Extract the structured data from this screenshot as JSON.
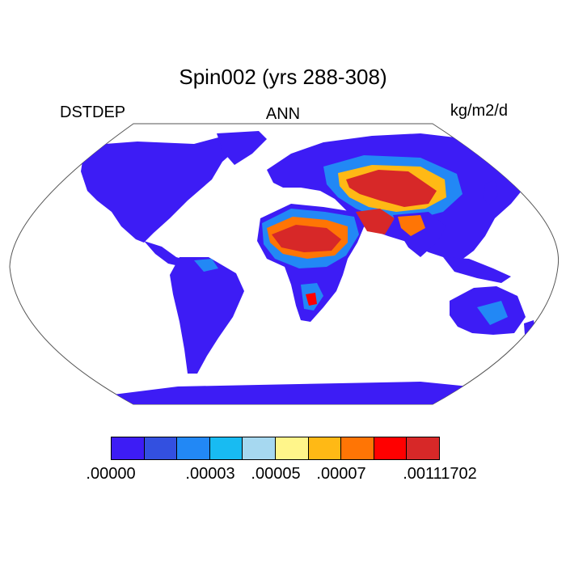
{
  "title": "Spin002 (yrs 288-308)",
  "left_label": "DSTDEP",
  "center_label": "ANN",
  "right_label": "kg/m2/d",
  "colors": {
    "ocean": "#ffffff",
    "outline": "#000000"
  },
  "colorbar": {
    "swatches": [
      "#3d1cf5",
      "#3350e0",
      "#2288f5",
      "#18bbf2",
      "#a6d8f0",
      "#fff58a",
      "#ffb915",
      "#ff7505",
      "#ff0000",
      "#d72828"
    ],
    "tick_labels": [
      ".00000",
      ".00003",
      ".00005",
      ".00007",
      ".00111702"
    ]
  }
}
